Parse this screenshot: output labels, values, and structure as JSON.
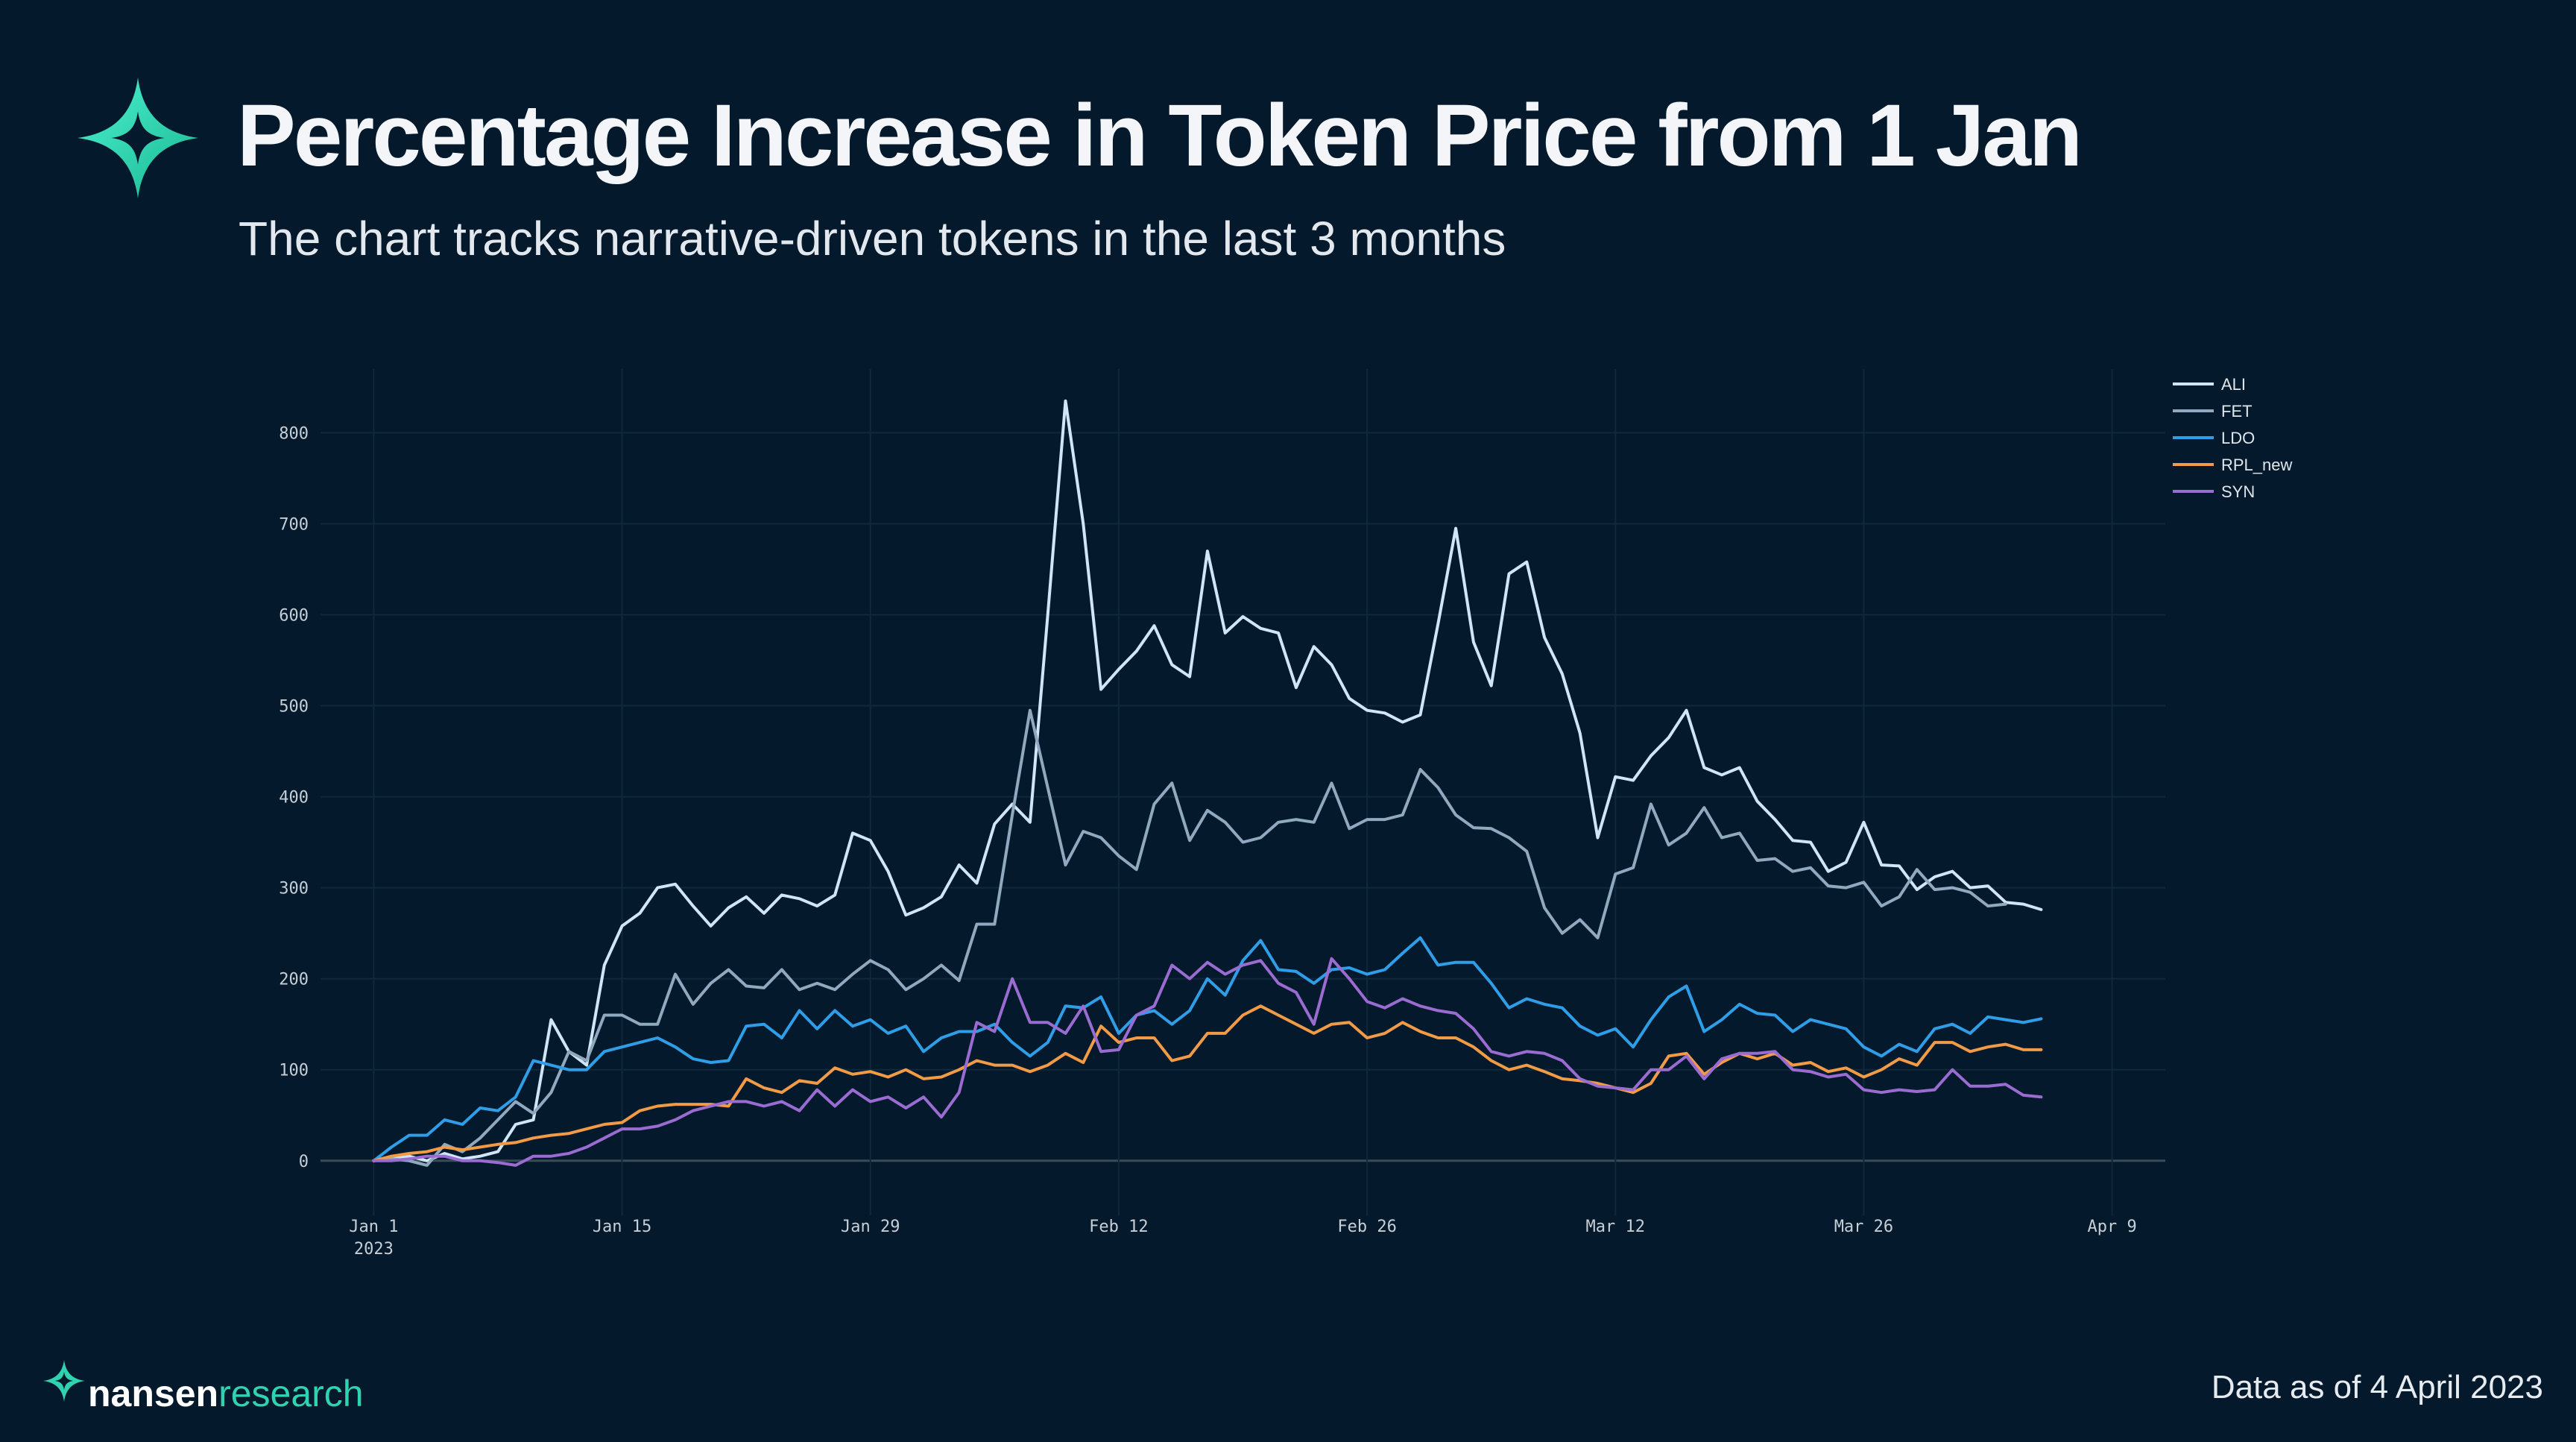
{
  "header": {
    "title": "Percentage Increase in Token Price from 1 Jan",
    "subtitle": "The chart tracks narrative-driven tokens in the last 3 months"
  },
  "brand": {
    "name_bold": "nansen",
    "name_light": "research",
    "accent": "#2fd3b0"
  },
  "footer": {
    "note": "Data as of 4 April 2023"
  },
  "theme": {
    "background": "#041a2c",
    "grid": "#10283b",
    "zero_line": "#3b4a57",
    "axis_text": "#c6ced6"
  },
  "chart_data": {
    "type": "line",
    "title": "Percentage Increase in Token Price from 1 Jan",
    "xlabel": "",
    "ylabel": "",
    "x_start": "2023-01-01",
    "x_step_days": 1,
    "xlim_days": [
      -3,
      101
    ],
    "ylim": [
      -60,
      870
    ],
    "y_ticks": [
      0,
      100,
      200,
      300,
      400,
      500,
      600,
      700,
      800
    ],
    "x_ticks": [
      {
        "day": 0,
        "label": "Jan 1",
        "sub": "2023"
      },
      {
        "day": 14,
        "label": "Jan 15",
        "sub": ""
      },
      {
        "day": 28,
        "label": "Jan 29",
        "sub": ""
      },
      {
        "day": 42,
        "label": "Feb 12",
        "sub": ""
      },
      {
        "day": 56,
        "label": "Feb 26",
        "sub": ""
      },
      {
        "day": 70,
        "label": "Mar 12",
        "sub": ""
      },
      {
        "day": 84,
        "label": "Mar 26",
        "sub": ""
      },
      {
        "day": 98,
        "label": "Apr 9",
        "sub": ""
      }
    ],
    "legend_position": "top-right",
    "series": [
      {
        "name": "ALI",
        "color": "#cfe6f7",
        "values": [
          0,
          2,
          5,
          0,
          8,
          2,
          5,
          10,
          40,
          45,
          155,
          120,
          105,
          215,
          258,
          272,
          300,
          304,
          280,
          258,
          278,
          290,
          272,
          292,
          288,
          280,
          292,
          360,
          352,
          318,
          270,
          278,
          290,
          325,
          305,
          370,
          392,
          372,
          600,
          835,
          700,
          518,
          540,
          560,
          588,
          545,
          532,
          670,
          580,
          598,
          585,
          580,
          520,
          565,
          545,
          508,
          495,
          492,
          482,
          490,
          590,
          695,
          570,
          522,
          645,
          658,
          575,
          535,
          470,
          355,
          422,
          418,
          445,
          465,
          495,
          432,
          424,
          432,
          395,
          375,
          352,
          350,
          318,
          328,
          372,
          325,
          324,
          298,
          312,
          318,
          300,
          302,
          284,
          282,
          276
        ]
      },
      {
        "name": "FET",
        "color": "#90a9bf",
        "values": [
          0,
          2,
          0,
          -5,
          18,
          10,
          25,
          45,
          65,
          52,
          75,
          120,
          110,
          160,
          160,
          150,
          150,
          205,
          172,
          195,
          210,
          192,
          190,
          210,
          188,
          195,
          188,
          205,
          220,
          210,
          188,
          200,
          215,
          198,
          260,
          260,
          380,
          495,
          410,
          325,
          362,
          355,
          335,
          320,
          392,
          415,
          352,
          385,
          372,
          350,
          355,
          372,
          375,
          372,
          415,
          365,
          375,
          375,
          380,
          430,
          410,
          380,
          366,
          365,
          355,
          340,
          278,
          250,
          265,
          245,
          315,
          322,
          392,
          347,
          360,
          388,
          355,
          360,
          330,
          332,
          318,
          322,
          302,
          300,
          306,
          280,
          290,
          320,
          298,
          300,
          295,
          280,
          282
        ]
      },
      {
        "name": "LDO",
        "color": "#2e9ee8",
        "values": [
          0,
          15,
          28,
          28,
          45,
          40,
          58,
          55,
          70,
          110,
          105,
          100,
          100,
          120,
          125,
          130,
          135,
          125,
          112,
          108,
          110,
          148,
          150,
          135,
          165,
          145,
          165,
          148,
          155,
          140,
          148,
          120,
          135,
          142,
          142,
          150,
          130,
          115,
          130,
          170,
          168,
          180,
          140,
          160,
          165,
          150,
          165,
          200,
          182,
          220,
          242,
          210,
          208,
          195,
          210,
          212,
          205,
          210,
          228,
          245,
          215,
          218,
          218,
          195,
          168,
          178,
          172,
          168,
          148,
          138,
          145,
          125,
          155,
          180,
          192,
          142,
          155,
          172,
          162,
          160,
          142,
          155,
          150,
          145,
          125,
          115,
          128,
          120,
          145,
          150,
          140,
          158,
          155,
          152,
          156
        ]
      },
      {
        "name": "RPL_new",
        "color": "#f19b47",
        "values": [
          0,
          5,
          8,
          10,
          15,
          12,
          15,
          18,
          20,
          25,
          28,
          30,
          35,
          40,
          42,
          55,
          60,
          62,
          62,
          62,
          60,
          90,
          80,
          75,
          88,
          85,
          102,
          95,
          98,
          92,
          100,
          90,
          92,
          100,
          110,
          105,
          105,
          98,
          105,
          118,
          108,
          148,
          130,
          135,
          135,
          110,
          115,
          140,
          140,
          160,
          170,
          160,
          150,
          140,
          150,
          152,
          135,
          140,
          152,
          142,
          135,
          135,
          125,
          110,
          100,
          105,
          98,
          90,
          88,
          85,
          80,
          75,
          85,
          115,
          118,
          95,
          108,
          118,
          112,
          118,
          105,
          108,
          98,
          102,
          92,
          100,
          112,
          105,
          130,
          130,
          120,
          125,
          128,
          122,
          122
        ]
      },
      {
        "name": "SYN",
        "color": "#9a6bd0",
        "values": [
          0,
          0,
          2,
          5,
          5,
          0,
          0,
          -2,
          -5,
          5,
          5,
          8,
          15,
          25,
          35,
          35,
          38,
          45,
          55,
          60,
          65,
          65,
          60,
          65,
          55,
          78,
          60,
          78,
          65,
          70,
          58,
          70,
          48,
          75,
          152,
          142,
          200,
          152,
          152,
          140,
          170,
          120,
          122,
          160,
          170,
          215,
          200,
          218,
          205,
          215,
          220,
          195,
          185,
          150,
          222,
          200,
          175,
          168,
          178,
          170,
          165,
          162,
          145,
          120,
          115,
          120,
          118,
          110,
          90,
          82,
          80,
          78,
          100,
          100,
          115,
          90,
          112,
          118,
          118,
          120,
          100,
          98,
          92,
          95,
          78,
          75,
          78,
          76,
          78,
          100,
          82,
          82,
          84,
          72,
          70
        ]
      }
    ]
  }
}
